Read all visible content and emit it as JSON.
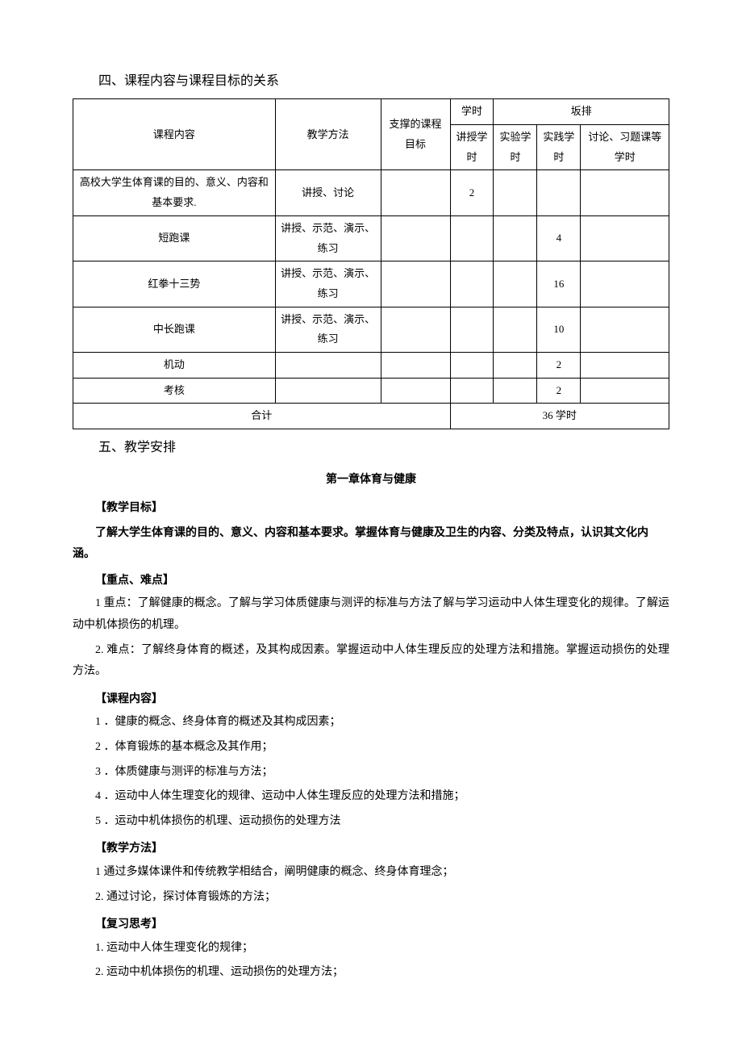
{
  "headings": {
    "h4": "四、课程内容与课程目标的关系",
    "h5": "五、教学安排"
  },
  "table": {
    "headers": {
      "course_content": "课程内容",
      "teaching_method": "教学方法",
      "supported_goal": "支撑的课程目标",
      "hours_group": "学时",
      "arrangement": "坂排",
      "lecture_hours": "讲授学时",
      "lab_hours": "实验学时",
      "practice_hours": "实践学时",
      "discuss_hours": "讨论、习题课等学时"
    },
    "rows": [
      {
        "content": "高校大学生体育课的目的、意义、内容和基本要求.",
        "method": "讲授、讨论",
        "goal": "",
        "lecture": "2",
        "lab": "",
        "practice": "",
        "discuss": ""
      },
      {
        "content": "短跑课",
        "method": "讲授、示范、演示、练习",
        "goal": "",
        "lecture": "",
        "lab": "",
        "practice": "4",
        "discuss": ""
      },
      {
        "content": "红拳十三势",
        "method": "讲授、示范、演示、练习",
        "goal": "",
        "lecture": "",
        "lab": "",
        "practice": "16",
        "discuss": ""
      },
      {
        "content": "中长跑课",
        "method": "讲授、示范、演示、练习",
        "goal": "",
        "lecture": "",
        "lab": "",
        "practice": "10",
        "discuss": ""
      },
      {
        "content": "机动",
        "method": "",
        "goal": "",
        "lecture": "",
        "lab": "",
        "practice": "2",
        "discuss": ""
      },
      {
        "content": "考核",
        "method": "",
        "goal": "",
        "lecture": "",
        "lab": "",
        "practice": "2",
        "discuss": ""
      }
    ],
    "total_label": "合计",
    "total_value": "36 学时"
  },
  "chapter": {
    "title": "第一章体育与健康",
    "goal_head": "【教学目标】",
    "goal_text": "了解大学生体育课的目的、意义、内容和基本要求。掌握体育与健康及卫生的内容、分类及特点，认识其文化内涵。",
    "key_head": "【重点、难点】",
    "key_p1": "1 重点：了解健康的概念。了解与学习体质健康与测评的标准与方法了解与学习运动中人体生理变化的规律。了解运动中机体损伤的机理。",
    "key_p2": "2. 难点：了解终身体育的概述，及其构成因素。掌握运动中人体生理反应的处理方法和措施。掌握运动损伤的处理方法。",
    "content_head": "【课程内容】",
    "content_items": [
      "1 ．健康的概念、终身体育的概述及其构成因素；",
      "2 ．体育锻炼的基本概念及其作用；",
      "3 ．体质健康与测评的标准与方法；",
      "4 ．运动中人体生理变化的规律、运动中人体生理反应的处理方法和措施；",
      "5 ．运动中机体损伤的机理、运动损伤的处理方法"
    ],
    "method_head": "【教学方法】",
    "method_p1": "1 通过多媒体课件和传统教学相结合，阐明健康的概念、终身体育理念；",
    "method_p2": "2. 通过讨论，探讨体育锻炼的方法；",
    "review_head": "【复习思考】",
    "review_p1": "1. 运动中人体生理变化的规律；",
    "review_p2": "2. 运动中机体损伤的机理、运动损伤的处理方法；"
  }
}
